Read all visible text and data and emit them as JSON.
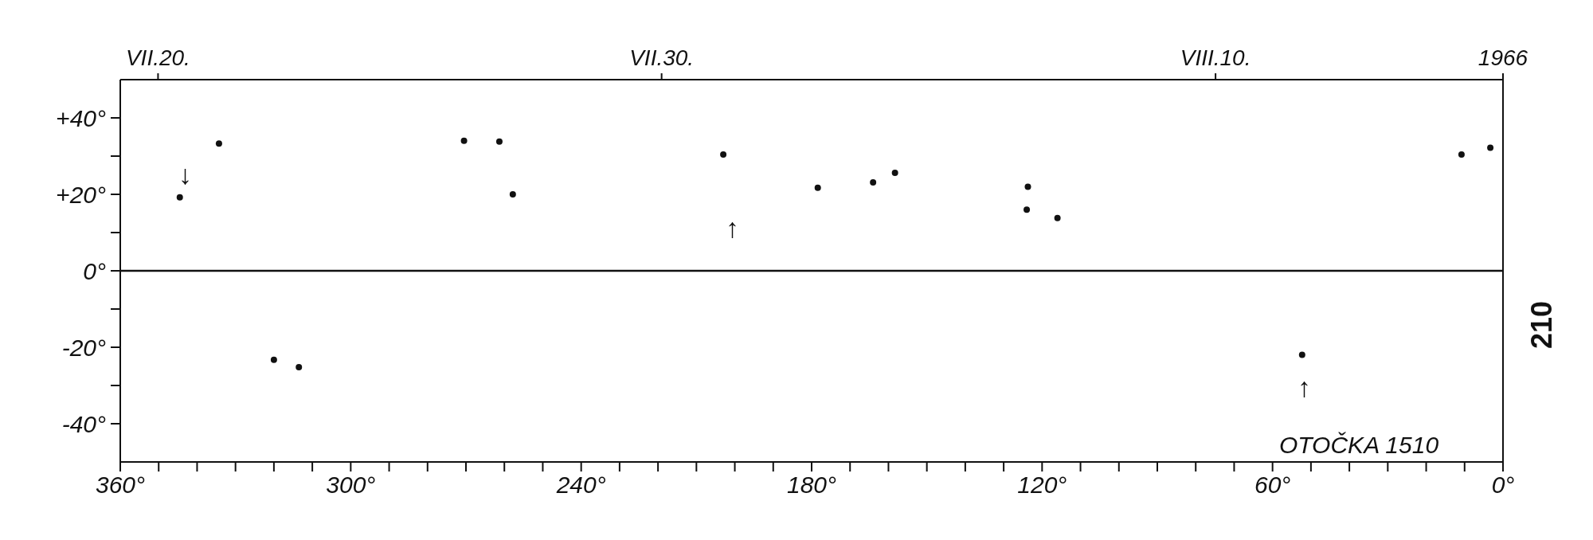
{
  "chart_data": {
    "type": "scatter",
    "x": [
      344.5,
      334.3,
      270.5,
      261.3,
      257.8,
      203,
      178.4,
      164,
      158.3,
      123.7,
      124,
      116,
      10.8,
      3.3,
      320,
      313.5,
      52.3
    ],
    "values": [
      19.2,
      33.3,
      34,
      33.8,
      20,
      30.4,
      21.7,
      23.1,
      25.6,
      22,
      16,
      13.8,
      30.4,
      32.2,
      -23.3,
      -25.2,
      -22
    ],
    "color": "#111111",
    "marker": "circle",
    "xlim": [
      360,
      0
    ],
    "xticks": [
      {
        "value": 360,
        "label": "360°"
      },
      {
        "value": 350,
        "label": null
      },
      {
        "value": 340,
        "label": null
      },
      {
        "value": 330,
        "label": null
      },
      {
        "value": 320,
        "label": null
      },
      {
        "value": 310,
        "label": null
      },
      {
        "value": 300,
        "label": "300°"
      },
      {
        "value": 290,
        "label": null
      },
      {
        "value": 280,
        "label": null
      },
      {
        "value": 270,
        "label": null
      },
      {
        "value": 260,
        "label": null
      },
      {
        "value": 250,
        "label": null
      },
      {
        "value": 240,
        "label": "240°"
      },
      {
        "value": 230,
        "label": null
      },
      {
        "value": 220,
        "label": null
      },
      {
        "value": 210,
        "label": null
      },
      {
        "value": 200,
        "label": null
      },
      {
        "value": 190,
        "label": null
      },
      {
        "value": 180,
        "label": "180°"
      },
      {
        "value": 170,
        "label": null
      },
      {
        "value": 160,
        "label": null
      },
      {
        "value": 150,
        "label": null
      },
      {
        "value": 140,
        "label": null
      },
      {
        "value": 130,
        "label": null
      },
      {
        "value": 120,
        "label": "120°"
      },
      {
        "value": 110,
        "label": null
      },
      {
        "value": 100,
        "label": null
      },
      {
        "value": 90,
        "label": null
      },
      {
        "value": 80,
        "label": null
      },
      {
        "value": 70,
        "label": null
      },
      {
        "value": 60,
        "label": "60°"
      },
      {
        "value": 50,
        "label": null
      },
      {
        "value": 40,
        "label": null
      },
      {
        "value": 30,
        "label": null
      },
      {
        "value": 20,
        "label": null
      },
      {
        "value": 10,
        "label": null
      },
      {
        "value": 0,
        "label": "0°"
      }
    ],
    "x2lim": [
      "1966-07-19T06:00",
      "1966-08-15T17:00"
    ],
    "x2ticks": [
      {
        "value": "1966-07-20",
        "label": "VII.20."
      },
      {
        "value": "1966-07-30",
        "label": "VII.30."
      },
      {
        "value": "1966-08-10",
        "label": "VIII.10."
      },
      {
        "value": "1966-08-15T17:00",
        "label": "1966"
      }
    ],
    "ylim": [
      -50,
      50
    ],
    "yticks": [
      {
        "value": -40,
        "label": "-40°"
      },
      {
        "value": -30,
        "label": null
      },
      {
        "value": -20,
        "label": "-20°"
      },
      {
        "value": -10,
        "label": null
      },
      {
        "value": 0,
        "label": "0°"
      },
      {
        "value": 10,
        "label": null
      },
      {
        "value": 20,
        "label": "+20°"
      },
      {
        "value": 30,
        "label": null
      },
      {
        "value": 40,
        "label": "+40°"
      }
    ],
    "ref_lines": [
      {
        "axis": "y",
        "value": 0,
        "color": "#111111",
        "line_style": "solid"
      }
    ],
    "annotations": [
      "OTOČKA 1510",
      "210",
      "↓",
      "↑",
      "↑"
    ],
    "grid": false,
    "legend": false
  }
}
